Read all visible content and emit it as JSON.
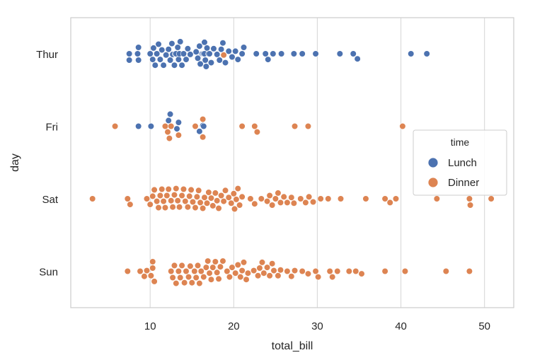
{
  "chart_data": {
    "type": "swarm",
    "xlabel": "total_bill",
    "ylabel": "day",
    "xlim": [
      0.5,
      53.5
    ],
    "xticks": [
      10,
      20,
      30,
      40,
      50
    ],
    "categories": [
      "Thur",
      "Fri",
      "Sat",
      "Sun"
    ],
    "grid": "vertical",
    "legend": {
      "title": "time",
      "placement": "right",
      "entries": [
        {
          "label": "Lunch",
          "color": "#4c72b0"
        },
        {
          "label": "Dinner",
          "color": "#dd8452"
        }
      ]
    },
    "series": [
      {
        "name": "Lunch",
        "color": "#4c72b0",
        "points": {
          "Thur": [
            7.5,
            7.5,
            8.5,
            8.6,
            8.6,
            10.0,
            10.3,
            10.4,
            10.6,
            10.8,
            11.0,
            11.2,
            11.4,
            11.6,
            11.9,
            12.2,
            12.4,
            12.6,
            12.7,
            12.9,
            13.0,
            13.1,
            13.3,
            13.4,
            13.5,
            13.6,
            13.8,
            14.0,
            14.3,
            14.5,
            14.8,
            15.5,
            15.7,
            15.9,
            16.0,
            16.2,
            16.3,
            16.4,
            16.5,
            16.5,
            16.6,
            16.7,
            16.8,
            17.0,
            17.1,
            17.3,
            17.6,
            18.0,
            18.3,
            18.5,
            18.7,
            19.0,
            19.4,
            19.8,
            20.2,
            20.5,
            21.0,
            21.2,
            22.7,
            23.8,
            24.1,
            24.7,
            25.7,
            27.2,
            28.2,
            29.8,
            32.7,
            34.3,
            34.8,
            41.2,
            43.1
          ],
          "Fri": [
            8.6,
            10.1,
            12.2,
            12.4,
            13.2,
            13.4,
            15.9,
            16.3,
            16.4
          ]
        }
      },
      {
        "name": "Dinner",
        "color": "#dd8452",
        "points": {
          "Thur": [
            18.8
          ],
          "Fri": [
            5.8,
            11.8,
            12.1,
            12.3,
            12.5,
            13.4,
            15.4,
            16.3,
            16.3,
            21.0,
            22.5,
            22.8,
            27.3,
            28.9,
            40.2
          ],
          "Sat": [
            3.1,
            7.3,
            7.6,
            9.6,
            10.0,
            10.3,
            10.5,
            10.8,
            11.0,
            11.2,
            11.4,
            11.6,
            11.8,
            12.0,
            12.2,
            12.5,
            12.7,
            12.9,
            13.1,
            13.3,
            13.5,
            13.8,
            14.0,
            14.2,
            14.5,
            14.7,
            14.9,
            15.1,
            15.4,
            15.6,
            15.8,
            16.0,
            16.3,
            16.5,
            16.8,
            17.0,
            17.3,
            17.5,
            17.8,
            18.0,
            18.2,
            18.5,
            18.8,
            19.0,
            19.4,
            19.7,
            20.0,
            20.1,
            20.3,
            20.5,
            20.7,
            21.0,
            22.0,
            22.5,
            23.3,
            24.0,
            24.3,
            24.6,
            25.0,
            25.3,
            25.6,
            26.0,
            26.4,
            26.9,
            27.2,
            28.0,
            28.6,
            29.0,
            29.5,
            30.4,
            31.3,
            32.8,
            35.8,
            38.1,
            38.7,
            39.4,
            44.3,
            48.2,
            48.3,
            50.8
          ],
          "Sun": [
            7.3,
            8.8,
            9.3,
            9.6,
            10.1,
            10.3,
            10.5,
            10.3,
            12.5,
            12.7,
            12.9,
            13.1,
            13.4,
            13.6,
            13.8,
            14.1,
            14.3,
            14.6,
            14.8,
            15.0,
            15.3,
            15.5,
            15.7,
            15.9,
            16.1,
            16.4,
            16.7,
            16.9,
            17.1,
            17.3,
            17.5,
            17.8,
            18.0,
            18.2,
            18.4,
            18.7,
            19.2,
            19.5,
            19.8,
            20.2,
            20.5,
            20.8,
            21.0,
            21.2,
            21.5,
            21.7,
            22.4,
            22.9,
            23.1,
            23.4,
            23.6,
            24.0,
            24.3,
            24.6,
            24.8,
            25.3,
            25.6,
            26.4,
            26.9,
            27.3,
            28.2,
            28.9,
            29.8,
            30.1,
            31.5,
            31.8,
            32.4,
            33.8,
            34.6,
            35.3,
            38.1,
            40.5,
            45.4,
            48.2
          ]
        }
      }
    ]
  }
}
